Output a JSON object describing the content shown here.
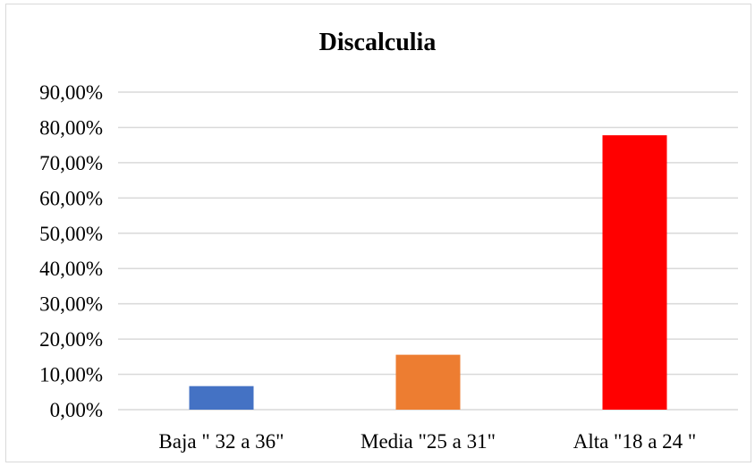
{
  "chart_data": {
    "type": "bar",
    "title": "Discalculia",
    "categories": [
      "Baja \" 32  a 36\"",
      "Media \"25 a 31\"",
      "Alta \"18 a 24 \""
    ],
    "values": [
      6.67,
      15.56,
      77.78
    ],
    "colors": [
      "#4472C4",
      "#ED7D31",
      "#FF0000"
    ],
    "ylim": [
      0,
      90
    ],
    "yticks": [
      0,
      10,
      20,
      30,
      40,
      50,
      60,
      70,
      80,
      90
    ],
    "ytick_labels": [
      "0,00%",
      "10,00%",
      "20,00%",
      "30,00%",
      "40,00%",
      "50,00%",
      "60,00%",
      "70,00%",
      "80,00%",
      "90,00%"
    ],
    "grid": true,
    "gridline_color": "#d9d9d9",
    "legend": "none"
  }
}
